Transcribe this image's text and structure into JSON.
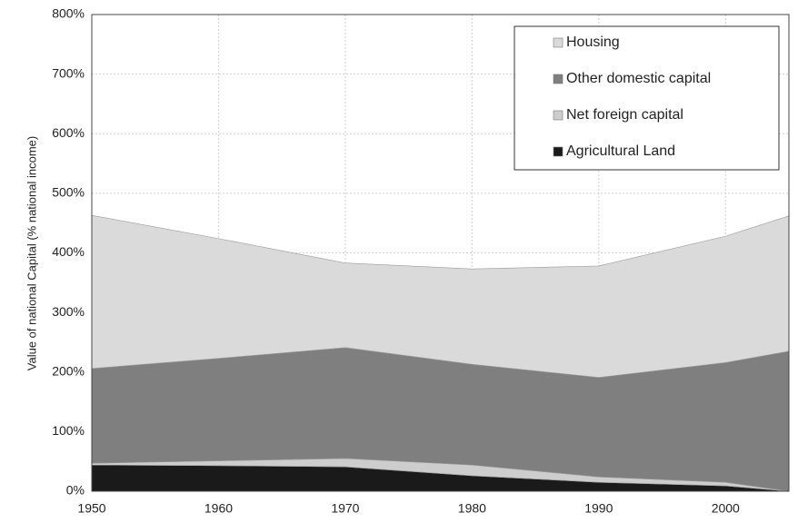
{
  "chart_data": {
    "type": "stacked_area",
    "y_label": "Value of national Capital (% national income)",
    "x": [
      1950,
      1960,
      1970,
      1980,
      1990,
      2000,
      2005
    ],
    "series": [
      {
        "name": "Housing",
        "color": "#dadada",
        "values": [
          257,
          201,
          142,
          160,
          187,
          212,
          227
        ]
      },
      {
        "name": "Other domestic capital",
        "color": "#7f7f7f",
        "values": [
          159,
          172,
          186,
          169,
          167,
          201,
          235
        ]
      },
      {
        "name": "Net foreign capital",
        "color": "#cdcdcd",
        "values": [
          3,
          8,
          14,
          18,
          9,
          6,
          0
        ]
      },
      {
        "name": "Agricultural Land",
        "color": "#1a1a1a",
        "values": [
          44,
          43,
          41,
          26,
          15,
          9,
          0
        ]
      }
    ],
    "xlim": [
      1950,
      2005
    ],
    "xticks": [
      1950,
      1960,
      1970,
      1980,
      1990,
      2000
    ],
    "ylim": [
      0,
      800
    ],
    "yticks": [
      {
        "value": 0,
        "label": "0%"
      },
      {
        "value": 100,
        "label": "100%"
      },
      {
        "value": 200,
        "label": "200%"
      },
      {
        "value": 300,
        "label": "300%"
      },
      {
        "value": 400,
        "label": "400%"
      },
      {
        "value": 500,
        "label": "500%"
      },
      {
        "value": 600,
        "label": "600%"
      },
      {
        "value": 700,
        "label": "700%"
      },
      {
        "value": 800,
        "label": "800%"
      }
    ],
    "grid": true,
    "legend": "upper right"
  }
}
